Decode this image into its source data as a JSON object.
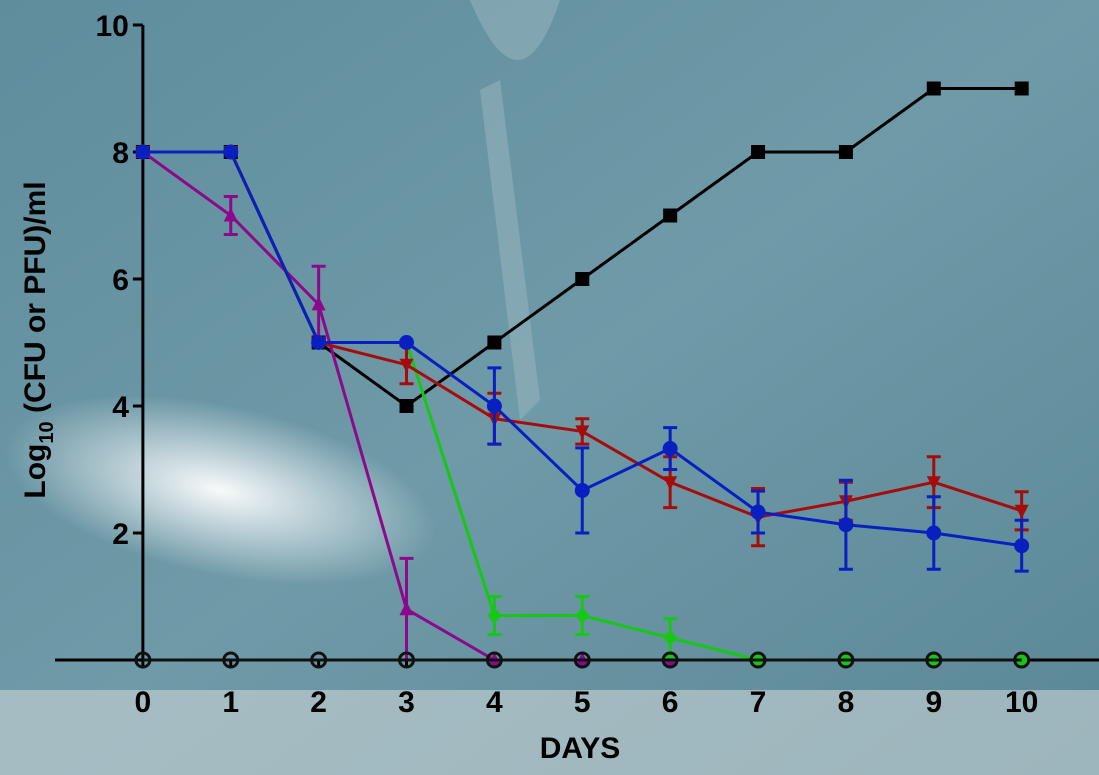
{
  "chart_data": {
    "type": "line",
    "y_label": {
      "base": "Log",
      "subscript": "10",
      "rest": " (CFU or PFU)/ml"
    },
    "x_label": "DAYS",
    "x": [
      0,
      1,
      2,
      3,
      4,
      5,
      6,
      7,
      8,
      9,
      10
    ],
    "xlim": [
      -1,
      10.88
    ],
    "ylim": [
      0,
      10
    ],
    "xticks": [
      0,
      1,
      2,
      3,
      4,
      5,
      6,
      7,
      8,
      9,
      10
    ],
    "yticks": [
      2,
      4,
      6,
      8,
      10
    ],
    "series": [
      {
        "color": "#000000",
        "marker": "square",
        "values": [
          8,
          8,
          5,
          4,
          5,
          6,
          7,
          8,
          8,
          9,
          9
        ],
        "errors": [
          null,
          null,
          null,
          null,
          null,
          null,
          null,
          null,
          null,
          null,
          null
        ]
      },
      {
        "color": "#8b0a8b",
        "marker": "triangle-up",
        "values": [
          8,
          7,
          5.6,
          0.8,
          0,
          0,
          0,
          null,
          null,
          null,
          null
        ],
        "errors": [
          null,
          0.3,
          0.6,
          0.8,
          null,
          null,
          null,
          null,
          null,
          null,
          null
        ]
      },
      {
        "color": "#14c814",
        "marker": "diamond",
        "values": [
          8,
          8,
          5,
          5,
          0.7,
          0.7,
          0.35,
          0,
          0,
          0,
          0
        ],
        "errors": [
          null,
          null,
          null,
          null,
          0.3,
          0.3,
          0.3,
          null,
          null,
          null,
          null
        ]
      },
      {
        "color": "#a50d0d",
        "marker": "triangle-down",
        "values": [
          8,
          8,
          5,
          4.65,
          3.8,
          3.6,
          2.8,
          2.25,
          2.5,
          2.8,
          2.35
        ],
        "errors": [
          null,
          null,
          null,
          0.3,
          0.4,
          0.2,
          0.4,
          0.45,
          0.3,
          0.4,
          0.3
        ]
      },
      {
        "color": "#0a1fc0",
        "marker": "circle",
        "values": [
          8,
          8,
          5,
          5,
          4,
          2.67,
          3.33,
          2.33,
          2.13,
          2,
          1.8
        ],
        "errors": [
          null,
          null,
          null,
          null,
          0.6,
          0.67,
          0.33,
          0.33,
          0.7,
          0.57,
          0.4
        ]
      },
      {
        "color": "#111111",
        "marker": "open-circle",
        "values": [
          0,
          0,
          0,
          0,
          0,
          0,
          0,
          0,
          0,
          0,
          0
        ],
        "errors": [
          null,
          null,
          null,
          null,
          null,
          null,
          null,
          null,
          null,
          null,
          null
        ]
      }
    ]
  }
}
